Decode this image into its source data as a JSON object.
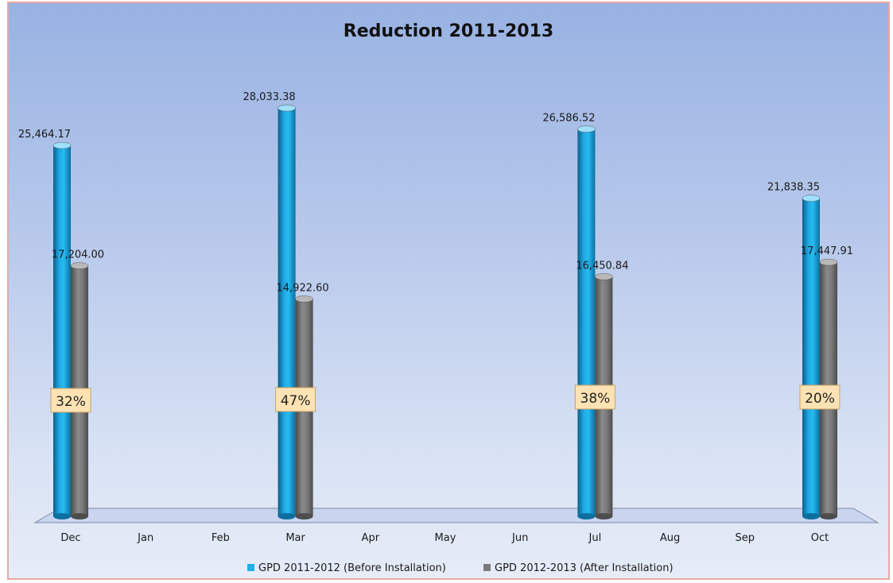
{
  "chart_data": {
    "type": "bar",
    "title": "Reduction 2011-2013",
    "categories": [
      "Dec",
      "Jan",
      "Feb",
      "Mar",
      "Apr",
      "May",
      "Jun",
      "Jul",
      "Aug",
      "Sep",
      "Oct"
    ],
    "series": [
      {
        "name": "GPD 2011-2012 (Before Installation)",
        "color": "#1fb0e8",
        "values": [
          25464.17,
          null,
          null,
          28033.38,
          null,
          null,
          null,
          26586.52,
          null,
          null,
          21838.35
        ],
        "labels": [
          "25,464.17",
          "",
          "",
          "28,033.38",
          "",
          "",
          "",
          "26,586.52",
          "",
          "",
          "21,838.35"
        ]
      },
      {
        "name": "GPD 2012-2013 (After Installation)",
        "color": "#7a7a7a",
        "values": [
          17204.0,
          null,
          null,
          14922.6,
          null,
          null,
          null,
          16450.84,
          null,
          null,
          17447.91
        ],
        "labels": [
          "17,204.00",
          "",
          "",
          "14,922.60",
          "",
          "",
          "",
          "16,450.84",
          "",
          "",
          "17,447.91"
        ]
      }
    ],
    "annotations": [
      {
        "category": "Dec",
        "text": "32%"
      },
      {
        "category": "Mar",
        "text": "47%"
      },
      {
        "category": "Jul",
        "text": "38%"
      },
      {
        "category": "Oct",
        "text": "20%"
      }
    ],
    "ylim": [
      0,
      30000
    ],
    "grid": false,
    "legend_position": "bottom",
    "style": "3d-cylinder"
  }
}
